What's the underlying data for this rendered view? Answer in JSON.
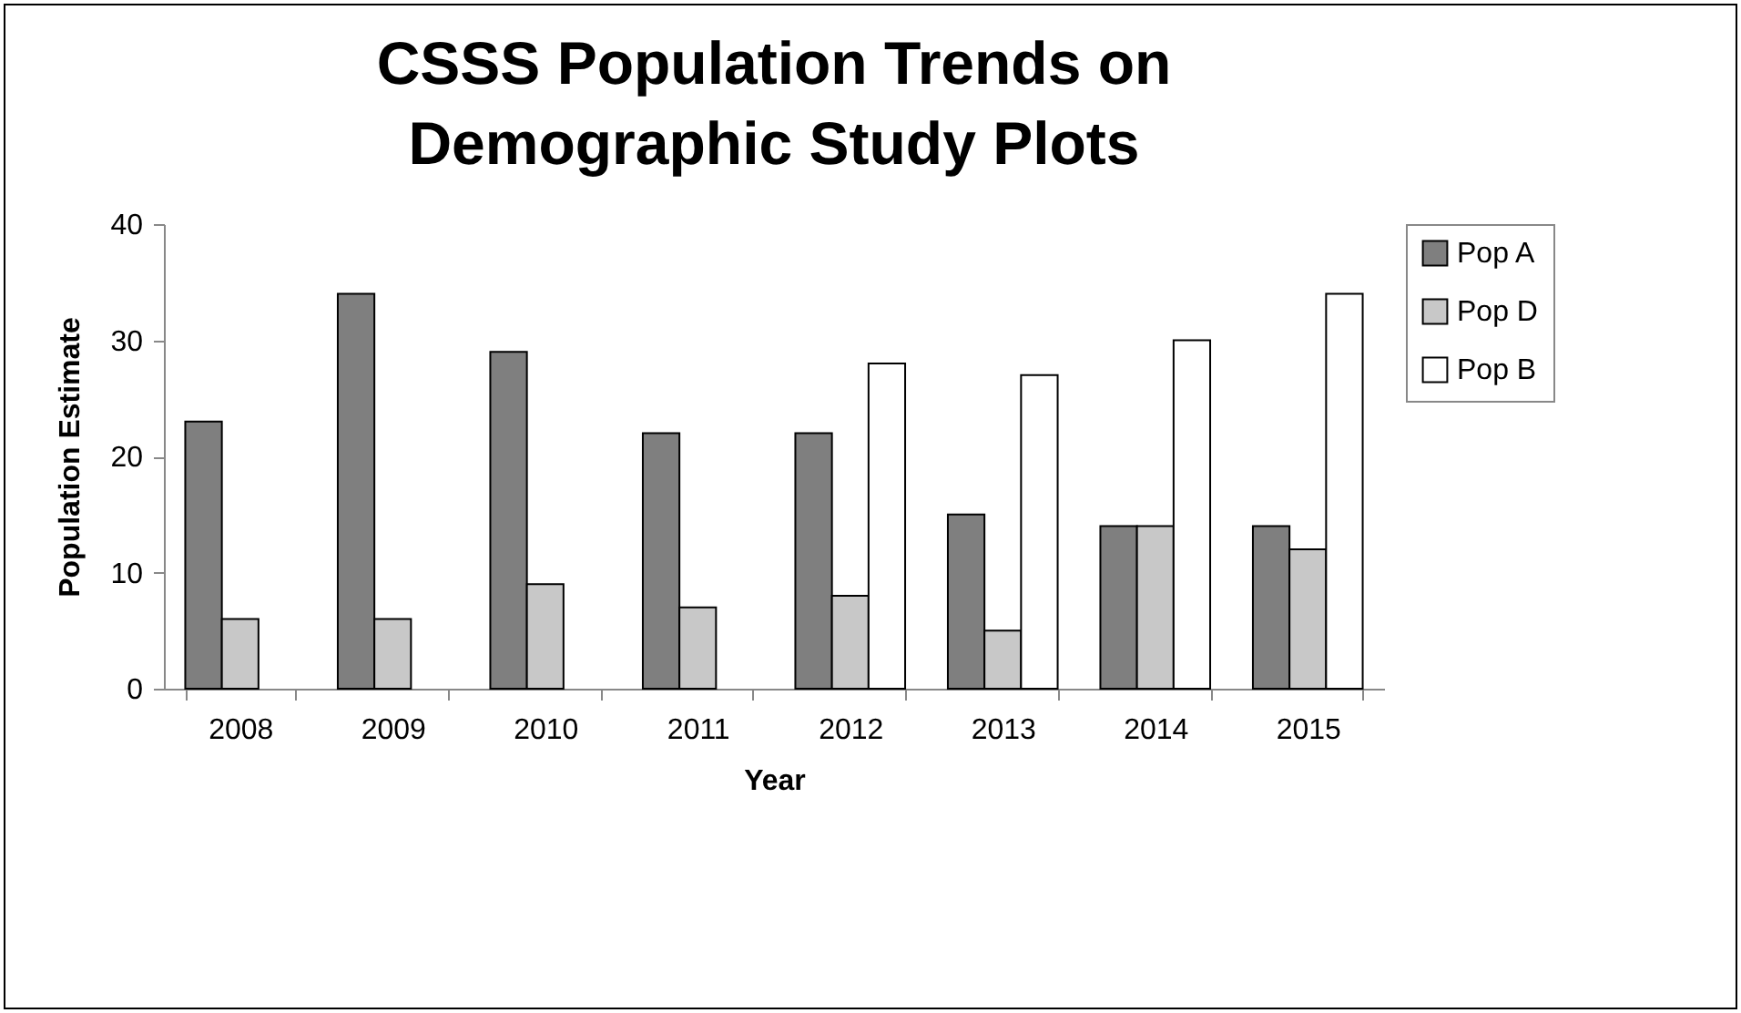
{
  "chart_data": {
    "type": "bar",
    "title": "CSSS Population Trends on Demographic  Study Plots",
    "xlabel": "Year",
    "ylabel": "Population Estimate",
    "categories": [
      "2008",
      "2009",
      "2010",
      "2011",
      "2012",
      "2013",
      "2014",
      "2015"
    ],
    "series": [
      {
        "name": "Pop A",
        "color": "#7f7f7f",
        "values": [
          23,
          34,
          29,
          22,
          22,
          15,
          14,
          14
        ]
      },
      {
        "name": "Pop D",
        "color": "#c8c8c8",
        "values": [
          6,
          6,
          9,
          7,
          8,
          5,
          14,
          12
        ]
      },
      {
        "name": "Pop B",
        "color": "#ffffff",
        "values": [
          null,
          null,
          null,
          null,
          28,
          27,
          30,
          34
        ]
      }
    ],
    "ylim": [
      0,
      40
    ],
    "yticks": [
      0,
      10,
      20,
      30,
      40
    ],
    "grid": false,
    "legend": "top right"
  }
}
